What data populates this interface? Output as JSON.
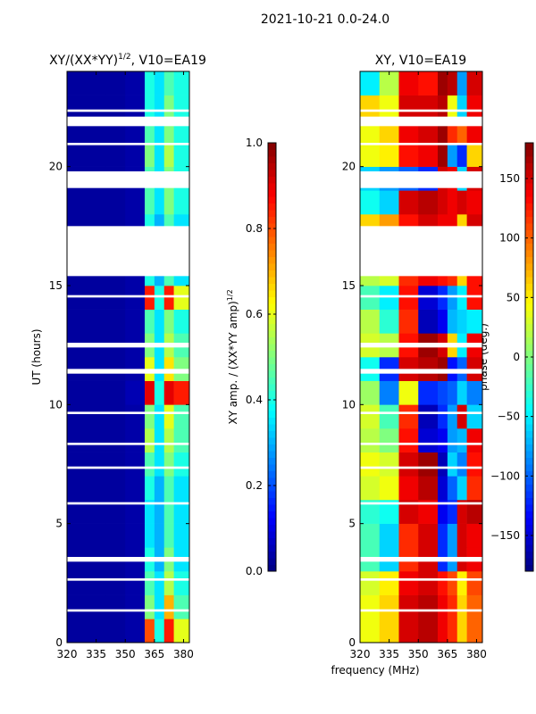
{
  "figure_title": "2021-10-21 0.0-24.0",
  "xlabel": "frequency (MHz)",
  "chart_data": [
    {
      "type": "heatmap",
      "title_main": "XY/(XX*YY)",
      "title_sup": "1/2",
      "title_tail": ", V10=EA19",
      "ylabel": "UT (hours)",
      "xlim": [
        320,
        383
      ],
      "ylim": [
        0,
        24
      ],
      "xticks": [
        "320",
        "335",
        "350",
        "365",
        "380"
      ],
      "xtick_values": [
        320,
        335,
        350,
        365,
        380
      ],
      "yticks": [
        "0",
        "5",
        "10",
        "15",
        "20"
      ],
      "ytick_values": [
        0,
        5,
        10,
        15,
        20
      ],
      "freq_edges": [
        320,
        330,
        340,
        350,
        360,
        365,
        370,
        375,
        383
      ],
      "time_step_hours": 1,
      "values": [
        [
          0.03,
          0.03,
          0.03,
          0.04,
          0.8,
          0.4,
          0.85,
          0.6
        ],
        [
          0.03,
          0.03,
          0.03,
          0.04,
          0.5,
          0.35,
          0.7,
          0.45
        ],
        [
          0.03,
          0.03,
          0.03,
          0.04,
          0.45,
          0.35,
          0.55,
          0.4
        ],
        [
          0.03,
          0.03,
          0.03,
          0.04,
          0.4,
          0.3,
          0.5,
          0.35
        ],
        [
          0.03,
          0.03,
          0.03,
          0.04,
          0.35,
          0.3,
          0.45,
          0.35
        ],
        [
          0.03,
          0.03,
          0.03,
          0.04,
          0.35,
          0.3,
          0.45,
          0.35
        ],
        [
          0.03,
          0.03,
          0.03,
          0.04,
          0.4,
          0.3,
          0.45,
          0.35
        ],
        [
          0.03,
          0.03,
          0.03,
          0.04,
          0.45,
          0.35,
          0.5,
          0.4
        ],
        [
          0.03,
          0.03,
          0.03,
          0.04,
          0.55,
          0.35,
          0.55,
          0.45
        ],
        [
          0.03,
          0.03,
          0.03,
          0.04,
          0.5,
          0.35,
          0.6,
          0.45
        ],
        [
          0.03,
          0.03,
          0.03,
          0.05,
          0.9,
          0.4,
          0.9,
          0.85
        ],
        [
          0.03,
          0.03,
          0.03,
          0.04,
          0.6,
          0.35,
          0.65,
          0.5
        ],
        [
          0.03,
          0.03,
          0.03,
          0.04,
          0.5,
          0.35,
          0.55,
          0.45
        ],
        [
          0.03,
          0.03,
          0.03,
          0.04,
          0.45,
          0.35,
          0.5,
          0.4
        ],
        [
          0.03,
          0.03,
          0.03,
          0.04,
          0.85,
          0.4,
          0.85,
          0.6
        ],
        [
          0.03,
          0.03,
          0.03,
          0.04,
          0.4,
          0.3,
          0.45,
          0.35
        ],
        [
          0.03,
          0.03,
          0.03,
          0.04,
          0.4,
          0.3,
          0.45,
          0.35
        ],
        [
          0.03,
          0.03,
          0.03,
          0.04,
          0.4,
          0.3,
          0.45,
          0.35
        ],
        [
          0.03,
          0.03,
          0.03,
          0.04,
          0.45,
          0.35,
          0.5,
          0.4
        ],
        [
          0.03,
          0.03,
          0.03,
          0.04,
          0.45,
          0.35,
          0.5,
          0.4
        ],
        [
          0.03,
          0.03,
          0.03,
          0.04,
          0.5,
          0.35,
          0.55,
          0.4
        ],
        [
          0.03,
          0.03,
          0.03,
          0.04,
          0.45,
          0.35,
          0.5,
          0.4
        ],
        [
          0.03,
          0.03,
          0.03,
          0.04,
          0.4,
          0.35,
          0.5,
          0.4
        ],
        [
          0.03,
          0.03,
          0.03,
          0.04,
          0.4,
          0.35,
          0.45,
          0.4
        ]
      ],
      "colorbar": {
        "label_main": "XY amp. / (XX*YY amp)",
        "label_sup": "1/2",
        "range": [
          0,
          1
        ],
        "ticks": [
          "0.0",
          "0.2",
          "0.4",
          "0.6",
          "0.8",
          "1.0"
        ],
        "tick_values": [
          0,
          0.2,
          0.4,
          0.6,
          0.8,
          1.0
        ]
      }
    },
    {
      "type": "heatmap",
      "title": "XY, V10=EA19",
      "xlim": [
        320,
        383
      ],
      "ylim": [
        0,
        24
      ],
      "xticks": [
        "320",
        "335",
        "350",
        "365",
        "380"
      ],
      "xtick_values": [
        320,
        335,
        350,
        365,
        380
      ],
      "yticks": [
        "0",
        "5",
        "10",
        "15",
        "20"
      ],
      "ytick_values": [
        0,
        5,
        10,
        15,
        20
      ],
      "freq_edges": [
        320,
        330,
        340,
        350,
        360,
        365,
        370,
        375,
        383
      ],
      "time_step_hours": 1,
      "values": [
        [
          40,
          60,
          150,
          160,
          140,
          120,
          60,
          100
        ],
        [
          40,
          60,
          150,
          160,
          140,
          120,
          60,
          100
        ],
        [
          30,
          50,
          140,
          150,
          130,
          110,
          50,
          110
        ],
        [
          -20,
          -60,
          120,
          150,
          -120,
          -80,
          150,
          140
        ],
        [
          -20,
          -60,
          120,
          150,
          -120,
          -80,
          150,
          140
        ],
        [
          -30,
          -40,
          150,
          140,
          -140,
          -120,
          150,
          160
        ],
        [
          30,
          40,
          140,
          160,
          -150,
          -100,
          -60,
          120
        ],
        [
          40,
          30,
          150,
          170,
          -160,
          -60,
          -90,
          130
        ],
        [
          20,
          0,
          130,
          -150,
          -140,
          -80,
          -70,
          140
        ],
        [
          30,
          -20,
          120,
          -160,
          -120,
          -80,
          150,
          -60
        ],
        [
          10,
          -90,
          40,
          -120,
          -110,
          -100,
          -60,
          -90
        ],
        [
          -40,
          -120,
          150,
          160,
          170,
          -130,
          -100,
          150
        ],
        [
          30,
          20,
          130,
          170,
          150,
          60,
          -50,
          140
        ],
        [
          20,
          -30,
          120,
          -160,
          -140,
          -70,
          -60,
          -50
        ],
        [
          -20,
          -50,
          130,
          -150,
          -120,
          -80,
          -50,
          130
        ],
        [
          20,
          30,
          120,
          140,
          130,
          120,
          60,
          130
        ],
        [
          20,
          30,
          120,
          140,
          130,
          120,
          60,
          130
        ],
        [
          60,
          80,
          130,
          150,
          140,
          140,
          60,
          150
        ],
        [
          -40,
          -60,
          150,
          160,
          150,
          140,
          150,
          140
        ],
        [
          -60,
          -80,
          -100,
          -120,
          150,
          140,
          -60,
          150
        ],
        [
          40,
          50,
          130,
          140,
          170,
          -80,
          -120,
          60
        ],
        [
          40,
          60,
          140,
          150,
          170,
          120,
          100,
          140
        ],
        [
          60,
          40,
          150,
          150,
          160,
          40,
          -60,
          140
        ],
        [
          -50,
          20,
          140,
          130,
          170,
          160,
          -80,
          150
        ]
      ],
      "colorbar": {
        "label": "phase (deg.)",
        "range": [
          -180,
          180
        ],
        "ticks": [
          "−150",
          "−100",
          "−50",
          "0",
          "50",
          "100",
          "150"
        ],
        "tick_values": [
          -150,
          -100,
          -50,
          0,
          50,
          100,
          150
        ]
      }
    }
  ],
  "no_data_intervals_hours": [
    [
      15.4,
      17.5
    ],
    [
      19.1,
      19.8
    ],
    [
      20.9,
      21.0
    ],
    [
      21.7,
      22.1
    ],
    [
      22.3,
      22.4
    ],
    [
      11.3,
      11.5
    ],
    [
      12.4,
      12.6
    ],
    [
      14.5,
      14.6
    ],
    [
      9.6,
      9.7
    ],
    [
      8.3,
      8.4
    ],
    [
      7.3,
      7.4
    ],
    [
      5.8,
      5.9
    ],
    [
      3.4,
      3.6
    ],
    [
      2.6,
      2.7
    ],
    [
      1.3,
      1.4
    ]
  ]
}
